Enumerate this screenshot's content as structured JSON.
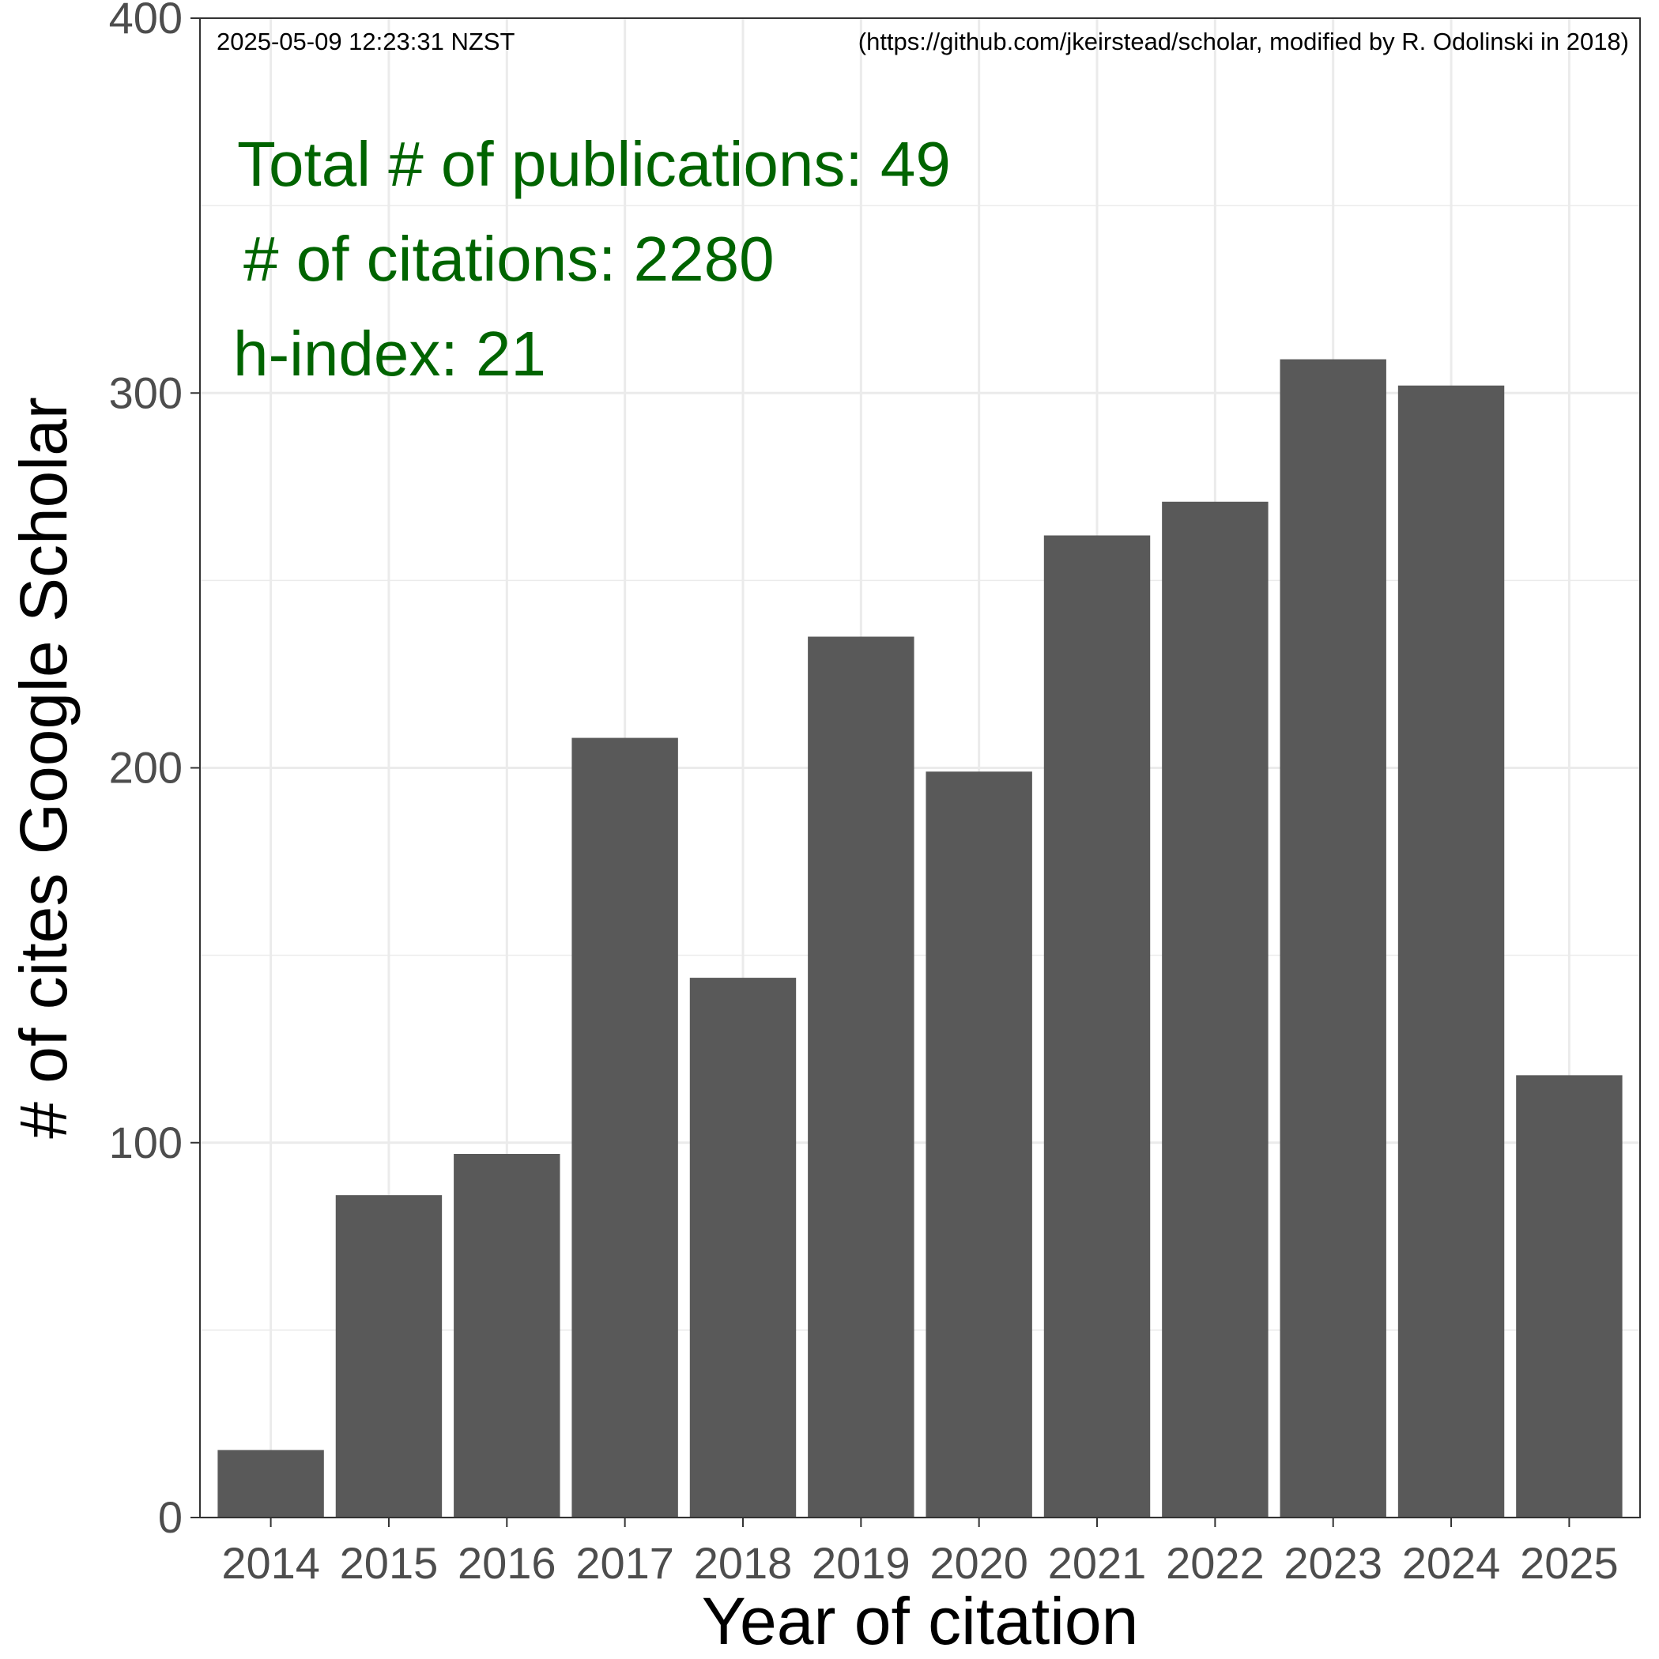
{
  "chart_data": {
    "type": "bar",
    "categories": [
      "2014",
      "2015",
      "2016",
      "2017",
      "2018",
      "2019",
      "2020",
      "2021",
      "2022",
      "2023",
      "2024",
      "2025"
    ],
    "values": [
      18,
      86,
      97,
      208,
      144,
      235,
      199,
      262,
      271,
      309,
      302,
      118
    ],
    "xlabel": "Year of citation",
    "ylabel": "# of cites Google Scholar",
    "ylim": [
      0,
      400
    ],
    "yticks": [
      0,
      100,
      200,
      300,
      400
    ],
    "grid": true,
    "bar_color": "#595959",
    "annotations": {
      "timestamp": "2025-05-09 12:23:31 NZST",
      "source": "(https://github.com/jkeirstead/scholar, modified by R. Odolinski in 2018)",
      "total_publications": "Total # of publications: 49",
      "citations": "# of citations: 2280",
      "h_index": "h-index: 21",
      "annotation_color": "#006400"
    }
  }
}
